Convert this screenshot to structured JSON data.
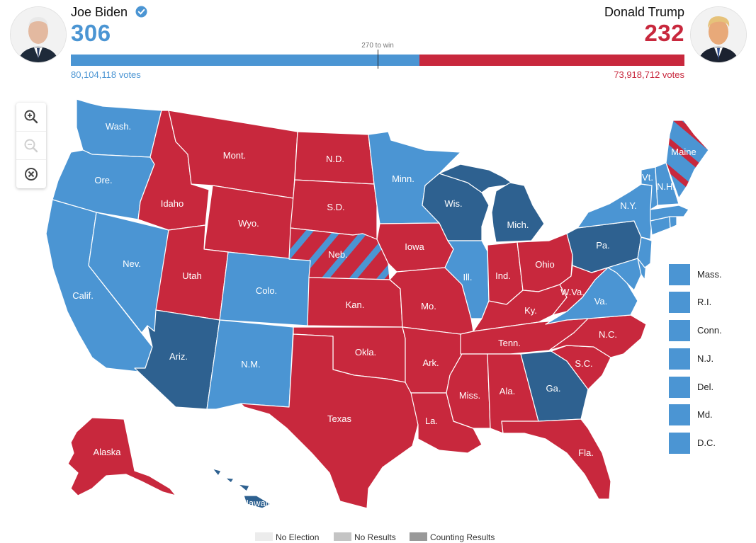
{
  "colors": {
    "dem_light": "#4b95d3",
    "dem_dark": "#2e6190",
    "rep": "#c8283d",
    "no_election": "#ececec",
    "no_results": "#c4c4c4",
    "counting_results": "#999999"
  },
  "candidates": {
    "left": {
      "name": "Joe Biden",
      "electoral_votes": "306",
      "popular_votes": "80,104,118 votes",
      "verified_icon": "verified-check-icon"
    },
    "right": {
      "name": "Donald Trump",
      "electoral_votes": "232",
      "popular_votes": "73,918,712 votes"
    }
  },
  "progress": {
    "threshold_label": "270 to win",
    "left_share": 0.568
  },
  "zoom_controls": {
    "zoom_in_icon": "zoom-in-icon",
    "zoom_out_icon": "zoom-out-icon",
    "reset_icon": "reset-icon"
  },
  "states": {
    "wa": "Wash.",
    "or": "Ore.",
    "ca": "Calif.",
    "nv": "Nev.",
    "id": "Idaho",
    "mt": "Mont.",
    "wy": "Wyo.",
    "ut": "Utah",
    "az": "Ariz.",
    "co": "Colo.",
    "nm": "N.M.",
    "nd": "N.D.",
    "sd": "S.D.",
    "ne": "Neb.",
    "ks": "Kan.",
    "ok": "Okla.",
    "tx": "Texas",
    "mn": "Minn.",
    "ia": "Iowa",
    "mo": "Mo.",
    "ar": "Ark.",
    "la": "La.",
    "wi": "Wis.",
    "il": "Ill.",
    "mi": "Mich.",
    "in": "Ind.",
    "oh": "Ohio",
    "ky": "Ky.",
    "tn": "Tenn.",
    "ms": "Miss.",
    "al": "Ala.",
    "ga": "Ga.",
    "fl": "Fla.",
    "sc": "S.C.",
    "nc": "N.C.",
    "va": "Va.",
    "wv": "W.Va.",
    "pa": "Pa.",
    "ny": "N.Y.",
    "vt": "Vt.",
    "nh": "N.H.",
    "me": "Maine",
    "ak": "Alaska",
    "hi": "Hawaii"
  },
  "small_states": [
    {
      "label": "Mass."
    },
    {
      "label": "R.I."
    },
    {
      "label": "Conn."
    },
    {
      "label": "N.J."
    },
    {
      "label": "Del."
    },
    {
      "label": "Md."
    },
    {
      "label": "D.C."
    }
  ],
  "legend": [
    {
      "label": "No Election"
    },
    {
      "label": "No Results"
    },
    {
      "label": "Counting Results"
    }
  ]
}
